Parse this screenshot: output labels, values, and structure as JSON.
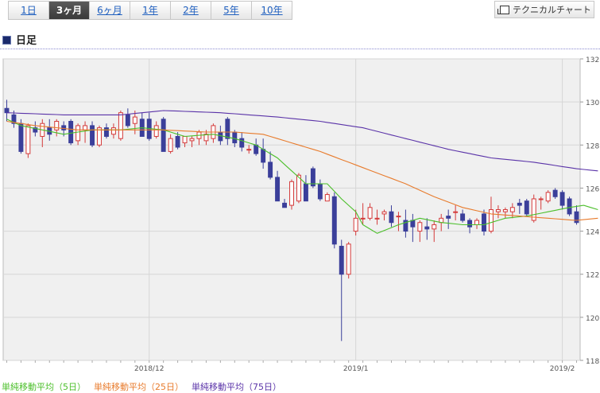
{
  "tabs": [
    {
      "label": "1日",
      "active": false
    },
    {
      "label": "3ヶ月",
      "active": true
    },
    {
      "label": "6ヶ月",
      "active": false
    },
    {
      "label": "1年",
      "active": false
    },
    {
      "label": "2年",
      "active": false
    },
    {
      "label": "5年",
      "active": false
    },
    {
      "label": "10年",
      "active": false
    }
  ],
  "tech_chart_label": "テクニカルチャート",
  "section_title": "日足",
  "chart_data": {
    "type": "candlestick",
    "ylim": [
      118,
      132
    ],
    "y_ticks": [
      118,
      120,
      122,
      124,
      126,
      128,
      130,
      132
    ],
    "x_ticks": [
      {
        "label": "2018/12",
        "index": 20
      },
      {
        "label": "2019/1",
        "index": 49
      },
      {
        "label": "2019/2",
        "index": 78
      }
    ],
    "up_color": "#d43a3a",
    "down_color": "#3b3f9a",
    "grid": true,
    "candles": [
      [
        129.7,
        130.1,
        129.1,
        129.5
      ],
      [
        129.4,
        129.6,
        128.8,
        129.0
      ],
      [
        129.0,
        129.2,
        127.6,
        127.7
      ],
      [
        127.6,
        129.0,
        127.4,
        128.9
      ],
      [
        128.8,
        129.1,
        128.4,
        128.6
      ],
      [
        128.4,
        129.2,
        127.9,
        129.0
      ],
      [
        128.8,
        129.2,
        128.2,
        128.5
      ],
      [
        128.7,
        129.2,
        128.4,
        129.1
      ],
      [
        128.9,
        129.1,
        128.4,
        128.7
      ],
      [
        129.1,
        129.2,
        128.0,
        128.1
      ],
      [
        128.2,
        129.0,
        128.0,
        128.9
      ],
      [
        128.7,
        129.1,
        128.1,
        128.9
      ],
      [
        128.9,
        129.1,
        127.9,
        128.0
      ],
      [
        128.0,
        128.9,
        127.9,
        128.8
      ],
      [
        128.8,
        129.0,
        128.3,
        128.4
      ],
      [
        128.5,
        129.0,
        128.3,
        128.8
      ],
      [
        128.3,
        129.6,
        128.2,
        129.5
      ],
      [
        129.4,
        129.7,
        128.8,
        128.9
      ],
      [
        129.0,
        129.6,
        128.5,
        129.3
      ],
      [
        129.2,
        129.5,
        128.4,
        128.4
      ],
      [
        129.2,
        129.5,
        128.2,
        128.3
      ],
      [
        128.4,
        129.1,
        128.3,
        128.9
      ],
      [
        129.2,
        129.3,
        127.7,
        127.7
      ],
      [
        127.7,
        128.5,
        127.6,
        128.3
      ],
      [
        128.4,
        128.6,
        127.8,
        127.9
      ],
      [
        128.1,
        128.4,
        127.9,
        128.4
      ],
      [
        128.2,
        128.4,
        127.9,
        128.3
      ],
      [
        128.3,
        128.7,
        128.0,
        128.6
      ],
      [
        128.2,
        128.7,
        128.0,
        128.5
      ],
      [
        128.3,
        129.0,
        128.1,
        128.9
      ],
      [
        128.6,
        128.9,
        128.0,
        128.2
      ],
      [
        129.2,
        129.3,
        128.0,
        128.3
      ],
      [
        128.6,
        128.7,
        127.9,
        128.1
      ],
      [
        128.3,
        128.6,
        127.7,
        127.9
      ],
      [
        127.8,
        128.0,
        127.6,
        127.8
      ],
      [
        128.0,
        128.3,
        127.5,
        127.6
      ],
      [
        127.8,
        128.3,
        126.9,
        127.2
      ],
      [
        127.2,
        127.7,
        126.4,
        126.5
      ],
      [
        126.5,
        126.8,
        125.4,
        125.4
      ],
      [
        125.3,
        125.5,
        125.1,
        125.1
      ],
      [
        125.2,
        126.4,
        125.0,
        126.3
      ],
      [
        125.4,
        126.7,
        125.3,
        126.6
      ],
      [
        126.2,
        126.6,
        125.5,
        125.4
      ],
      [
        126.9,
        127.0,
        126.0,
        126.1
      ],
      [
        126.2,
        126.4,
        125.4,
        125.5
      ],
      [
        125.4,
        125.8,
        125.4,
        125.7
      ],
      [
        125.6,
        125.8,
        123.2,
        123.4
      ],
      [
        123.3,
        123.6,
        118.9,
        122.0
      ],
      [
        122.0,
        123.5,
        121.8,
        123.4
      ],
      [
        124.0,
        125.0,
        123.8,
        124.6
      ],
      [
        124.6,
        125.3,
        124.3,
        124.6
      ],
      [
        124.6,
        125.3,
        124.5,
        125.1
      ],
      [
        124.6,
        125.0,
        124.3,
        124.6
      ],
      [
        124.8,
        125.0,
        124.5,
        124.9
      ],
      [
        124.9,
        125.2,
        124.2,
        124.4
      ],
      [
        124.7,
        124.9,
        124.0,
        124.7
      ],
      [
        124.5,
        125.0,
        123.7,
        124.0
      ],
      [
        124.5,
        124.8,
        123.5,
        124.2
      ],
      [
        124.0,
        124.5,
        123.5,
        124.4
      ],
      [
        124.2,
        124.6,
        123.6,
        124.1
      ],
      [
        124.1,
        124.5,
        123.5,
        124.3
      ],
      [
        124.4,
        124.8,
        124.0,
        124.6
      ],
      [
        124.7,
        125.0,
        124.1,
        124.6
      ],
      [
        124.9,
        125.2,
        124.5,
        124.9
      ],
      [
        124.8,
        125.0,
        124.4,
        124.5
      ],
      [
        124.5,
        124.6,
        123.9,
        124.2
      ],
      [
        124.3,
        124.6,
        124.1,
        124.5
      ],
      [
        124.8,
        125.0,
        123.8,
        124.0
      ],
      [
        124.0,
        125.6,
        123.9,
        125.0
      ],
      [
        124.9,
        125.2,
        124.6,
        125.0
      ],
      [
        124.9,
        125.1,
        124.6,
        125.0
      ],
      [
        124.9,
        125.3,
        124.6,
        125.1
      ],
      [
        125.3,
        125.5,
        124.8,
        125.2
      ],
      [
        125.4,
        125.5,
        124.7,
        124.8
      ],
      [
        124.5,
        125.7,
        124.4,
        125.5
      ],
      [
        125.5,
        125.6,
        125.0,
        125.5
      ],
      [
        125.4,
        125.9,
        125.3,
        125.8
      ],
      [
        125.9,
        126.0,
        125.5,
        125.6
      ],
      [
        125.8,
        125.9,
        125.0,
        125.2
      ],
      [
        125.5,
        125.6,
        124.7,
        124.8
      ],
      [
        124.9,
        125.2,
        124.3,
        124.4
      ]
    ],
    "series": [
      {
        "name": "単純移動平均（5日）",
        "color": "#4bbf2a",
        "values": [
          [
            0,
            129.2
          ],
          [
            2,
            128.9
          ],
          [
            5,
            128.7
          ],
          [
            8,
            128.5
          ],
          [
            12,
            128.7
          ],
          [
            16,
            128.7
          ],
          [
            19,
            128.8
          ],
          [
            22,
            128.7
          ],
          [
            25,
            128.4
          ],
          [
            29,
            128.5
          ],
          [
            32,
            128.3
          ],
          [
            35,
            128.0
          ],
          [
            38,
            127.4
          ],
          [
            40,
            126.8
          ],
          [
            42,
            126.2
          ],
          [
            45,
            126.2
          ],
          [
            47,
            125.5
          ],
          [
            49,
            124.9
          ],
          [
            50,
            124.3
          ],
          [
            52,
            123.9
          ],
          [
            55,
            124.3
          ],
          [
            58,
            124.6
          ],
          [
            61,
            124.4
          ],
          [
            64,
            124.3
          ],
          [
            67,
            124.3
          ],
          [
            70,
            124.6
          ],
          [
            73,
            124.7
          ],
          [
            76,
            124.9
          ],
          [
            79,
            125.1
          ],
          [
            81,
            125.2
          ],
          [
            83,
            125.0
          ]
        ]
      },
      {
        "name": "単純移動平均（25日）",
        "color": "#e87b2c",
        "values": [
          [
            0,
            129.1
          ],
          [
            4,
            128.9
          ],
          [
            10,
            128.7
          ],
          [
            16,
            128.7
          ],
          [
            22,
            128.7
          ],
          [
            28,
            128.6
          ],
          [
            32,
            128.6
          ],
          [
            36,
            128.5
          ],
          [
            40,
            128.1
          ],
          [
            44,
            127.7
          ],
          [
            48,
            127.2
          ],
          [
            52,
            126.7
          ],
          [
            56,
            126.2
          ],
          [
            60,
            125.6
          ],
          [
            64,
            125.1
          ],
          [
            68,
            124.8
          ],
          [
            72,
            124.7
          ],
          [
            76,
            124.6
          ],
          [
            80,
            124.5
          ],
          [
            83,
            124.6
          ]
        ]
      },
      {
        "name": "単純移動平均（75日）",
        "color": "#5a33a8",
        "values": [
          [
            0,
            129.5
          ],
          [
            8,
            129.4
          ],
          [
            16,
            129.4
          ],
          [
            22,
            129.6
          ],
          [
            30,
            129.5
          ],
          [
            38,
            129.3
          ],
          [
            44,
            129.1
          ],
          [
            50,
            128.8
          ],
          [
            56,
            128.3
          ],
          [
            62,
            127.8
          ],
          [
            68,
            127.4
          ],
          [
            74,
            127.2
          ],
          [
            80,
            126.9
          ],
          [
            83,
            126.8
          ]
        ]
      }
    ]
  }
}
